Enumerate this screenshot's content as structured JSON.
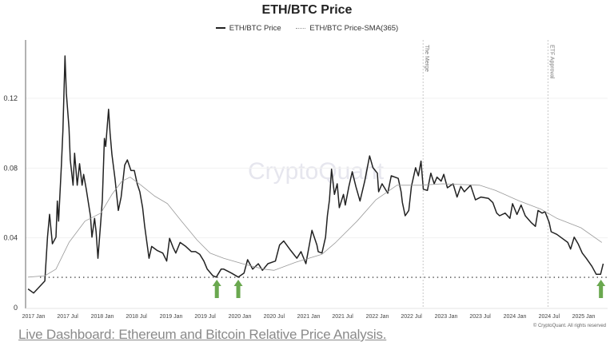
{
  "chart_data": {
    "type": "line",
    "title": "ETH/BTC Price",
    "xlabel": "",
    "ylabel": "",
    "ylim": [
      0,
      0.151
    ],
    "xlim": [
      "2016-11-20",
      "2025-05-10"
    ],
    "grid": true,
    "legend_position": "top",
    "yticks": [
      "0",
      "0.04",
      "0.08",
      "0.12"
    ],
    "ytick_values": [
      0,
      0.04,
      0.08,
      0.12
    ],
    "xticks": [
      "2017 Jan",
      "2017 Jul",
      "2018 Jan",
      "2018 Jul",
      "2019 Jan",
      "2019 Jul",
      "2020 Jan",
      "2020 Jul",
      "2021 Jan",
      "2021 Jul",
      "2022 Jan",
      "2022 Jul",
      "2023 Jan",
      "2023 Jul",
      "2024 Jan",
      "2024 Jul",
      "2025 Jan"
    ],
    "xtick_dates": [
      "2017-01-01",
      "2017-07-01",
      "2018-01-01",
      "2018-07-01",
      "2019-01-01",
      "2019-07-01",
      "2020-01-01",
      "2020-07-01",
      "2021-01-01",
      "2021-07-01",
      "2022-01-01",
      "2022-07-01",
      "2023-01-01",
      "2023-07-01",
      "2024-01-01",
      "2024-07-01",
      "2025-01-01"
    ],
    "series": [
      {
        "name": "ETH/BTC Price",
        "color": "#222222",
        "style": "solid",
        "points": [
          [
            "2016-12-02",
            0.0107
          ],
          [
            "2017-01-01",
            0.0084
          ],
          [
            "2017-03-02",
            0.0153
          ],
          [
            "2017-03-16",
            0.0404
          ],
          [
            "2017-03-27",
            0.0535
          ],
          [
            "2017-04-11",
            0.0366
          ],
          [
            "2017-04-30",
            0.0404
          ],
          [
            "2017-05-07",
            0.0611
          ],
          [
            "2017-05-14",
            0.0496
          ],
          [
            "2017-05-29",
            0.0817
          ],
          [
            "2017-06-06",
            0.1016
          ],
          [
            "2017-06-17",
            0.1443
          ],
          [
            "2017-06-24",
            0.1229
          ],
          [
            "2017-07-08",
            0.1031
          ],
          [
            "2017-07-15",
            0.0847
          ],
          [
            "2017-07-30",
            0.0702
          ],
          [
            "2017-08-07",
            0.0885
          ],
          [
            "2017-08-21",
            0.0702
          ],
          [
            "2017-09-02",
            0.0825
          ],
          [
            "2017-09-16",
            0.0702
          ],
          [
            "2017-09-24",
            0.0764
          ],
          [
            "2017-10-08",
            0.0679
          ],
          [
            "2017-10-30",
            0.0527
          ],
          [
            "2017-11-07",
            0.0404
          ],
          [
            "2017-11-21",
            0.0512
          ],
          [
            "2017-11-29",
            0.0435
          ],
          [
            "2017-12-09",
            0.0283
          ],
          [
            "2017-12-24",
            0.0496
          ],
          [
            "2018-01-01",
            0.0618
          ],
          [
            "2018-01-12",
            0.097
          ],
          [
            "2018-01-19",
            0.0924
          ],
          [
            "2018-02-03",
            0.1137
          ],
          [
            "2018-02-11",
            0.1
          ],
          [
            "2018-02-21",
            0.0878
          ],
          [
            "2018-03-09",
            0.0741
          ],
          [
            "2018-03-27",
            0.0557
          ],
          [
            "2018-04-11",
            0.0634
          ],
          [
            "2018-04-30",
            0.0817
          ],
          [
            "2018-05-14",
            0.0847
          ],
          [
            "2018-06-02",
            0.0786
          ],
          [
            "2018-06-20",
            0.0786
          ],
          [
            "2018-07-05",
            0.071
          ],
          [
            "2018-07-19",
            0.0664
          ],
          [
            "2018-08-03",
            0.0573
          ],
          [
            "2018-08-14",
            0.0466
          ],
          [
            "2018-09-06",
            0.0283
          ],
          [
            "2018-09-20",
            0.0351
          ],
          [
            "2018-10-19",
            0.0328
          ],
          [
            "2018-11-18",
            0.0313
          ],
          [
            "2018-12-09",
            0.0267
          ],
          [
            "2018-12-24",
            0.0397
          ],
          [
            "2019-01-12",
            0.0344
          ],
          [
            "2019-01-26",
            0.0313
          ],
          [
            "2019-02-18",
            0.0374
          ],
          [
            "2019-03-20",
            0.0351
          ],
          [
            "2019-04-19",
            0.0321
          ],
          [
            "2019-05-11",
            0.0321
          ],
          [
            "2019-06-02",
            0.0306
          ],
          [
            "2019-06-24",
            0.0267
          ],
          [
            "2019-07-12",
            0.0221
          ],
          [
            "2019-08-11",
            0.0183
          ],
          [
            "2019-08-29",
            0.0175
          ],
          [
            "2019-09-24",
            0.0221
          ],
          [
            "2019-10-08",
            0.0221
          ],
          [
            "2019-11-18",
            0.0198
          ],
          [
            "2019-12-24",
            0.0175
          ],
          [
            "2020-01-23",
            0.0198
          ],
          [
            "2020-02-11",
            0.0275
          ],
          [
            "2020-03-09",
            0.0221
          ],
          [
            "2020-04-08",
            0.0252
          ],
          [
            "2020-04-30",
            0.0214
          ],
          [
            "2020-05-29",
            0.0252
          ],
          [
            "2020-07-08",
            0.0267
          ],
          [
            "2020-07-30",
            0.0359
          ],
          [
            "2020-08-21",
            0.0382
          ],
          [
            "2020-09-27",
            0.0328
          ],
          [
            "2020-10-30",
            0.0283
          ],
          [
            "2020-11-21",
            0.0321
          ],
          [
            "2020-12-17",
            0.0252
          ],
          [
            "2021-01-05",
            0.0359
          ],
          [
            "2021-01-19",
            0.0443
          ],
          [
            "2021-02-14",
            0.0359
          ],
          [
            "2021-02-21",
            0.0321
          ],
          [
            "2021-03-13",
            0.0313
          ],
          [
            "2021-04-01",
            0.0404
          ],
          [
            "2021-04-11",
            0.0527
          ],
          [
            "2021-04-22",
            0.0618
          ],
          [
            "2021-05-03",
            0.0794
          ],
          [
            "2021-05-18",
            0.0649
          ],
          [
            "2021-06-02",
            0.071
          ],
          [
            "2021-06-13",
            0.0573
          ],
          [
            "2021-07-05",
            0.0649
          ],
          [
            "2021-07-15",
            0.0588
          ],
          [
            "2021-08-03",
            0.0695
          ],
          [
            "2021-08-21",
            0.0779
          ],
          [
            "2021-09-09",
            0.0695
          ],
          [
            "2021-10-01",
            0.0611
          ],
          [
            "2021-10-26",
            0.0725
          ],
          [
            "2021-11-21",
            0.087
          ],
          [
            "2021-12-09",
            0.0802
          ],
          [
            "2022-01-01",
            0.0771
          ],
          [
            "2022-01-08",
            0.0664
          ],
          [
            "2022-01-26",
            0.071
          ],
          [
            "2022-02-25",
            0.0656
          ],
          [
            "2022-03-16",
            0.0756
          ],
          [
            "2022-04-22",
            0.0741
          ],
          [
            "2022-05-07",
            0.0664
          ],
          [
            "2022-05-14",
            0.0603
          ],
          [
            "2022-05-29",
            0.0527
          ],
          [
            "2022-06-17",
            0.0557
          ],
          [
            "2022-07-01",
            0.0695
          ],
          [
            "2022-07-23",
            0.0802
          ],
          [
            "2022-08-07",
            0.0756
          ],
          [
            "2022-08-21",
            0.084
          ],
          [
            "2022-09-02",
            0.0679
          ],
          [
            "2022-09-24",
            0.0672
          ],
          [
            "2022-10-12",
            0.0771
          ],
          [
            "2022-10-30",
            0.071
          ],
          [
            "2022-11-14",
            0.0748
          ],
          [
            "2022-12-06",
            0.0725
          ],
          [
            "2022-12-20",
            0.0764
          ],
          [
            "2023-01-08",
            0.0687
          ],
          [
            "2023-02-07",
            0.071
          ],
          [
            "2023-02-28",
            0.0634
          ],
          [
            "2023-03-20",
            0.0695
          ],
          [
            "2023-04-08",
            0.0664
          ],
          [
            "2023-05-11",
            0.0702
          ],
          [
            "2023-06-06",
            0.0618
          ],
          [
            "2023-07-05",
            0.0634
          ],
          [
            "2023-08-14",
            0.0626
          ],
          [
            "2023-09-06",
            0.0603
          ],
          [
            "2023-09-27",
            0.0542
          ],
          [
            "2023-10-12",
            0.0527
          ],
          [
            "2023-11-11",
            0.0542
          ],
          [
            "2023-12-06",
            0.0512
          ],
          [
            "2023-12-20",
            0.0596
          ],
          [
            "2024-01-12",
            0.0534
          ],
          [
            "2024-02-03",
            0.0588
          ],
          [
            "2024-02-25",
            0.0527
          ],
          [
            "2024-03-27",
            0.0489
          ],
          [
            "2024-04-19",
            0.0466
          ],
          [
            "2024-05-03",
            0.0557
          ],
          [
            "2024-05-25",
            0.0542
          ],
          [
            "2024-06-09",
            0.055
          ],
          [
            "2024-07-01",
            0.0489
          ],
          [
            "2024-07-12",
            0.0435
          ],
          [
            "2024-08-11",
            0.042
          ],
          [
            "2024-09-09",
            0.0397
          ],
          [
            "2024-10-08",
            0.0374
          ],
          [
            "2024-10-23",
            0.0336
          ],
          [
            "2024-11-11",
            0.0404
          ],
          [
            "2024-12-02",
            0.0366
          ],
          [
            "2024-12-24",
            0.0313
          ],
          [
            "2025-01-15",
            0.0283
          ],
          [
            "2025-02-14",
            0.0237
          ],
          [
            "2025-03-09",
            0.0191
          ],
          [
            "2025-04-01",
            0.0191
          ],
          [
            "2025-04-15",
            0.0252
          ]
        ]
      },
      {
        "name": "ETH/BTC Price-SMA(365)",
        "color": "#9a9a9a",
        "style": "thin",
        "points": [
          [
            "2016-12-02",
            0.0175
          ],
          [
            "2017-03-02",
            0.0183
          ],
          [
            "2017-04-30",
            0.0221
          ],
          [
            "2017-07-08",
            0.0374
          ],
          [
            "2017-10-01",
            0.0496
          ],
          [
            "2017-12-24",
            0.0542
          ],
          [
            "2018-02-21",
            0.0649
          ],
          [
            "2018-04-15",
            0.0725
          ],
          [
            "2018-05-29",
            0.0748
          ],
          [
            "2018-07-26",
            0.0702
          ],
          [
            "2018-10-04",
            0.0641
          ],
          [
            "2018-12-13",
            0.0596
          ],
          [
            "2019-02-25",
            0.0496
          ],
          [
            "2019-05-18",
            0.0389
          ],
          [
            "2019-07-27",
            0.0313
          ],
          [
            "2019-10-08",
            0.0283
          ],
          [
            "2020-01-15",
            0.0252
          ],
          [
            "2020-05-07",
            0.0221
          ],
          [
            "2020-07-01",
            0.0214
          ],
          [
            "2020-10-23",
            0.026
          ],
          [
            "2021-03-13",
            0.0306
          ],
          [
            "2021-05-25",
            0.0374
          ],
          [
            "2021-09-16",
            0.0496
          ],
          [
            "2021-12-24",
            0.0618
          ],
          [
            "2022-04-15",
            0.0702
          ],
          [
            "2022-08-21",
            0.0702
          ],
          [
            "2022-12-13",
            0.071
          ],
          [
            "2023-06-28",
            0.0702
          ],
          [
            "2023-09-20",
            0.0672
          ],
          [
            "2024-01-26",
            0.0611
          ],
          [
            "2024-05-18",
            0.0565
          ],
          [
            "2024-08-11",
            0.0512
          ],
          [
            "2024-12-17",
            0.0458
          ],
          [
            "2025-04-08",
            0.0374
          ]
        ]
      }
    ],
    "support_level": 0.0174,
    "annotations": [
      {
        "label": "The Merge",
        "date": "2022-09-01"
      },
      {
        "label": "ETF Approval",
        "date": "2024-06-25"
      }
    ],
    "arrows": {
      "color": "#6aa84f",
      "dates": [
        "2019-09-01",
        "2019-12-24",
        "2025-04-03"
      ]
    },
    "watermark": "CryptoQuant"
  },
  "footer": {
    "copyright": "© CryptoQuant. All rights reserved",
    "link_text": "Live Dashboard: Ethereum and Bitcoin Relative Price Analysis."
  }
}
